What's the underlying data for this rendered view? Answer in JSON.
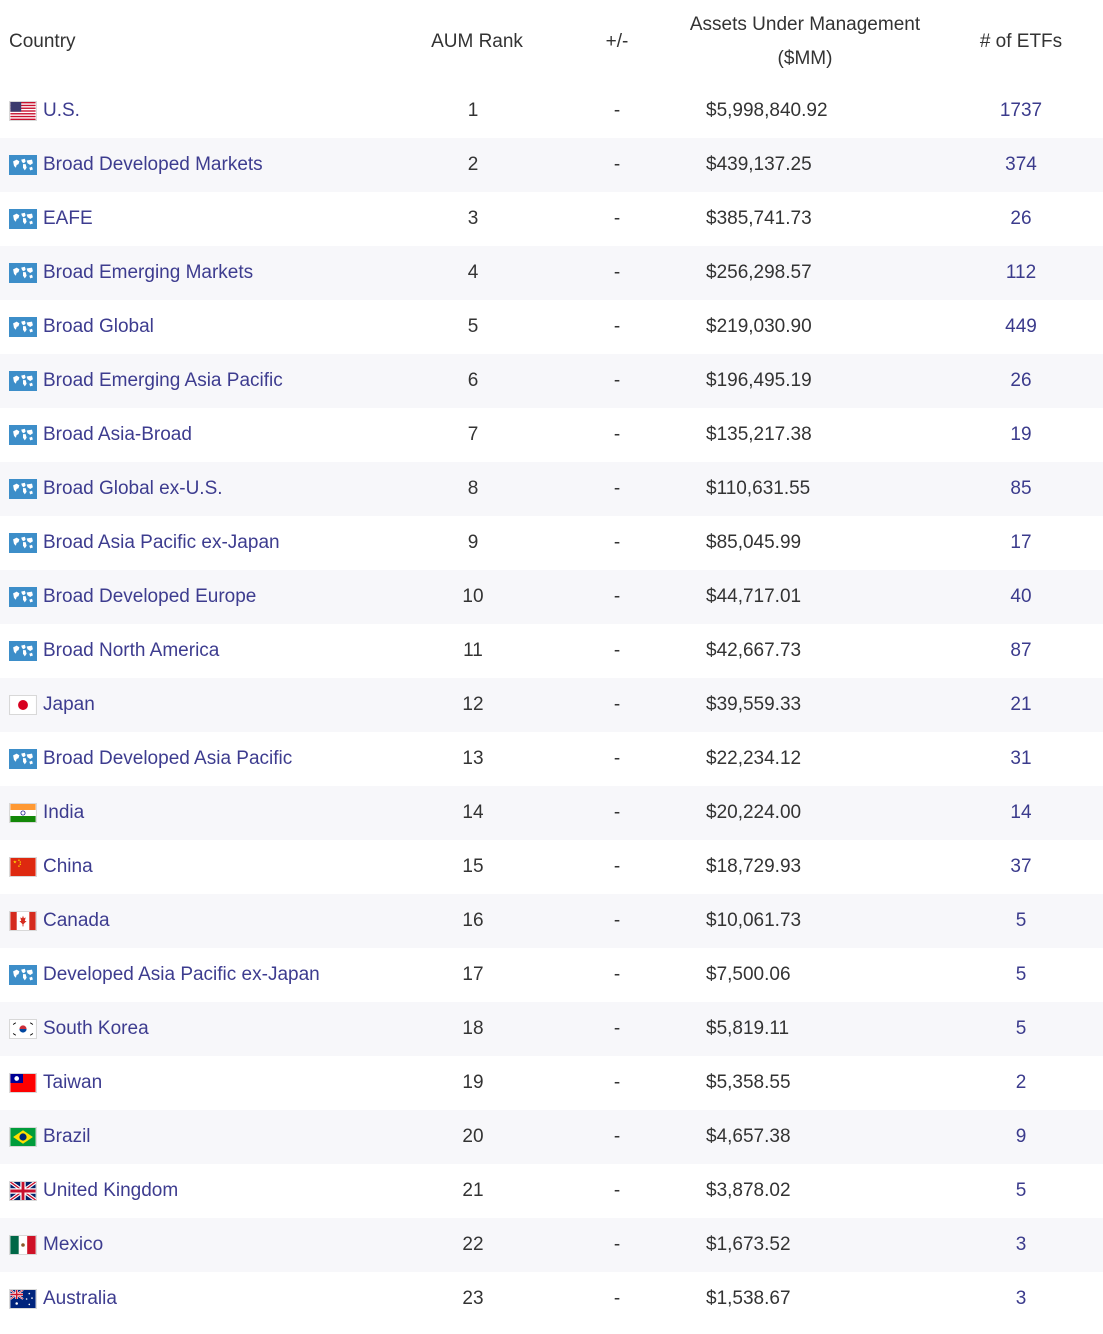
{
  "headers": {
    "country": "Country",
    "rank": "AUM Rank",
    "change": "+/-",
    "aum_line1": "Assets Under Management",
    "aum_line2": "($MM)",
    "etfs": "# of ETFs"
  },
  "rows": [
    {
      "country": "U.S.",
      "flag": "us-flag-icon",
      "rank": "1",
      "change": "-",
      "aum": "$5,998,840.92",
      "etfs": "1737"
    },
    {
      "country": "Broad Developed Markets",
      "flag": "world-map-icon",
      "rank": "2",
      "change": "-",
      "aum": "$439,137.25",
      "etfs": "374"
    },
    {
      "country": "EAFE",
      "flag": "world-map-icon",
      "rank": "3",
      "change": "-",
      "aum": "$385,741.73",
      "etfs": "26"
    },
    {
      "country": "Broad Emerging Markets",
      "flag": "world-map-icon",
      "rank": "4",
      "change": "-",
      "aum": "$256,298.57",
      "etfs": "112"
    },
    {
      "country": "Broad Global",
      "flag": "world-map-icon",
      "rank": "5",
      "change": "-",
      "aum": "$219,030.90",
      "etfs": "449"
    },
    {
      "country": "Broad Emerging Asia Pacific",
      "flag": "world-map-icon",
      "rank": "6",
      "change": "-",
      "aum": "$196,495.19",
      "etfs": "26"
    },
    {
      "country": "Broad Asia-Broad",
      "flag": "world-map-icon",
      "rank": "7",
      "change": "-",
      "aum": "$135,217.38",
      "etfs": "19"
    },
    {
      "country": "Broad Global ex-U.S.",
      "flag": "world-map-icon",
      "rank": "8",
      "change": "-",
      "aum": "$110,631.55",
      "etfs": "85"
    },
    {
      "country": "Broad Asia Pacific ex-Japan",
      "flag": "world-map-icon",
      "rank": "9",
      "change": "-",
      "aum": "$85,045.99",
      "etfs": "17"
    },
    {
      "country": "Broad Developed Europe",
      "flag": "world-map-icon",
      "rank": "10",
      "change": "-",
      "aum": "$44,717.01",
      "etfs": "40"
    },
    {
      "country": "Broad North America",
      "flag": "world-map-icon",
      "rank": "11",
      "change": "-",
      "aum": "$42,667.73",
      "etfs": "87"
    },
    {
      "country": "Japan",
      "flag": "japan-flag-icon",
      "rank": "12",
      "change": "-",
      "aum": "$39,559.33",
      "etfs": "21"
    },
    {
      "country": "Broad Developed Asia Pacific",
      "flag": "world-map-icon",
      "rank": "13",
      "change": "-",
      "aum": "$22,234.12",
      "etfs": "31"
    },
    {
      "country": "India",
      "flag": "india-flag-icon",
      "rank": "14",
      "change": "-",
      "aum": "$20,224.00",
      "etfs": "14"
    },
    {
      "country": "China",
      "flag": "china-flag-icon",
      "rank": "15",
      "change": "-",
      "aum": "$18,729.93",
      "etfs": "37"
    },
    {
      "country": "Canada",
      "flag": "canada-flag-icon",
      "rank": "16",
      "change": "-",
      "aum": "$10,061.73",
      "etfs": "5"
    },
    {
      "country": "Developed Asia Pacific ex-Japan",
      "flag": "world-map-icon",
      "rank": "17",
      "change": "-",
      "aum": "$7,500.06",
      "etfs": "5"
    },
    {
      "country": "South Korea",
      "flag": "south-korea-flag-icon",
      "rank": "18",
      "change": "-",
      "aum": "$5,819.11",
      "etfs": "5"
    },
    {
      "country": "Taiwan",
      "flag": "taiwan-flag-icon",
      "rank": "19",
      "change": "-",
      "aum": "$5,358.55",
      "etfs": "2"
    },
    {
      "country": "Brazil",
      "flag": "brazil-flag-icon",
      "rank": "20",
      "change": "-",
      "aum": "$4,657.38",
      "etfs": "9"
    },
    {
      "country": "United Kingdom",
      "flag": "uk-flag-icon",
      "rank": "21",
      "change": "-",
      "aum": "$3,878.02",
      "etfs": "5"
    },
    {
      "country": "Mexico",
      "flag": "mexico-flag-icon",
      "rank": "22",
      "change": "-",
      "aum": "$1,673.52",
      "etfs": "3"
    },
    {
      "country": "Australia",
      "flag": "australia-flag-icon",
      "rank": "23",
      "change": "-",
      "aum": "$1,538.67",
      "etfs": "3"
    }
  ],
  "colors": {
    "link": "#3d3c8f",
    "text": "#333333",
    "stripe": "#f7f7fa",
    "region_icon": "#3d8ec9"
  }
}
